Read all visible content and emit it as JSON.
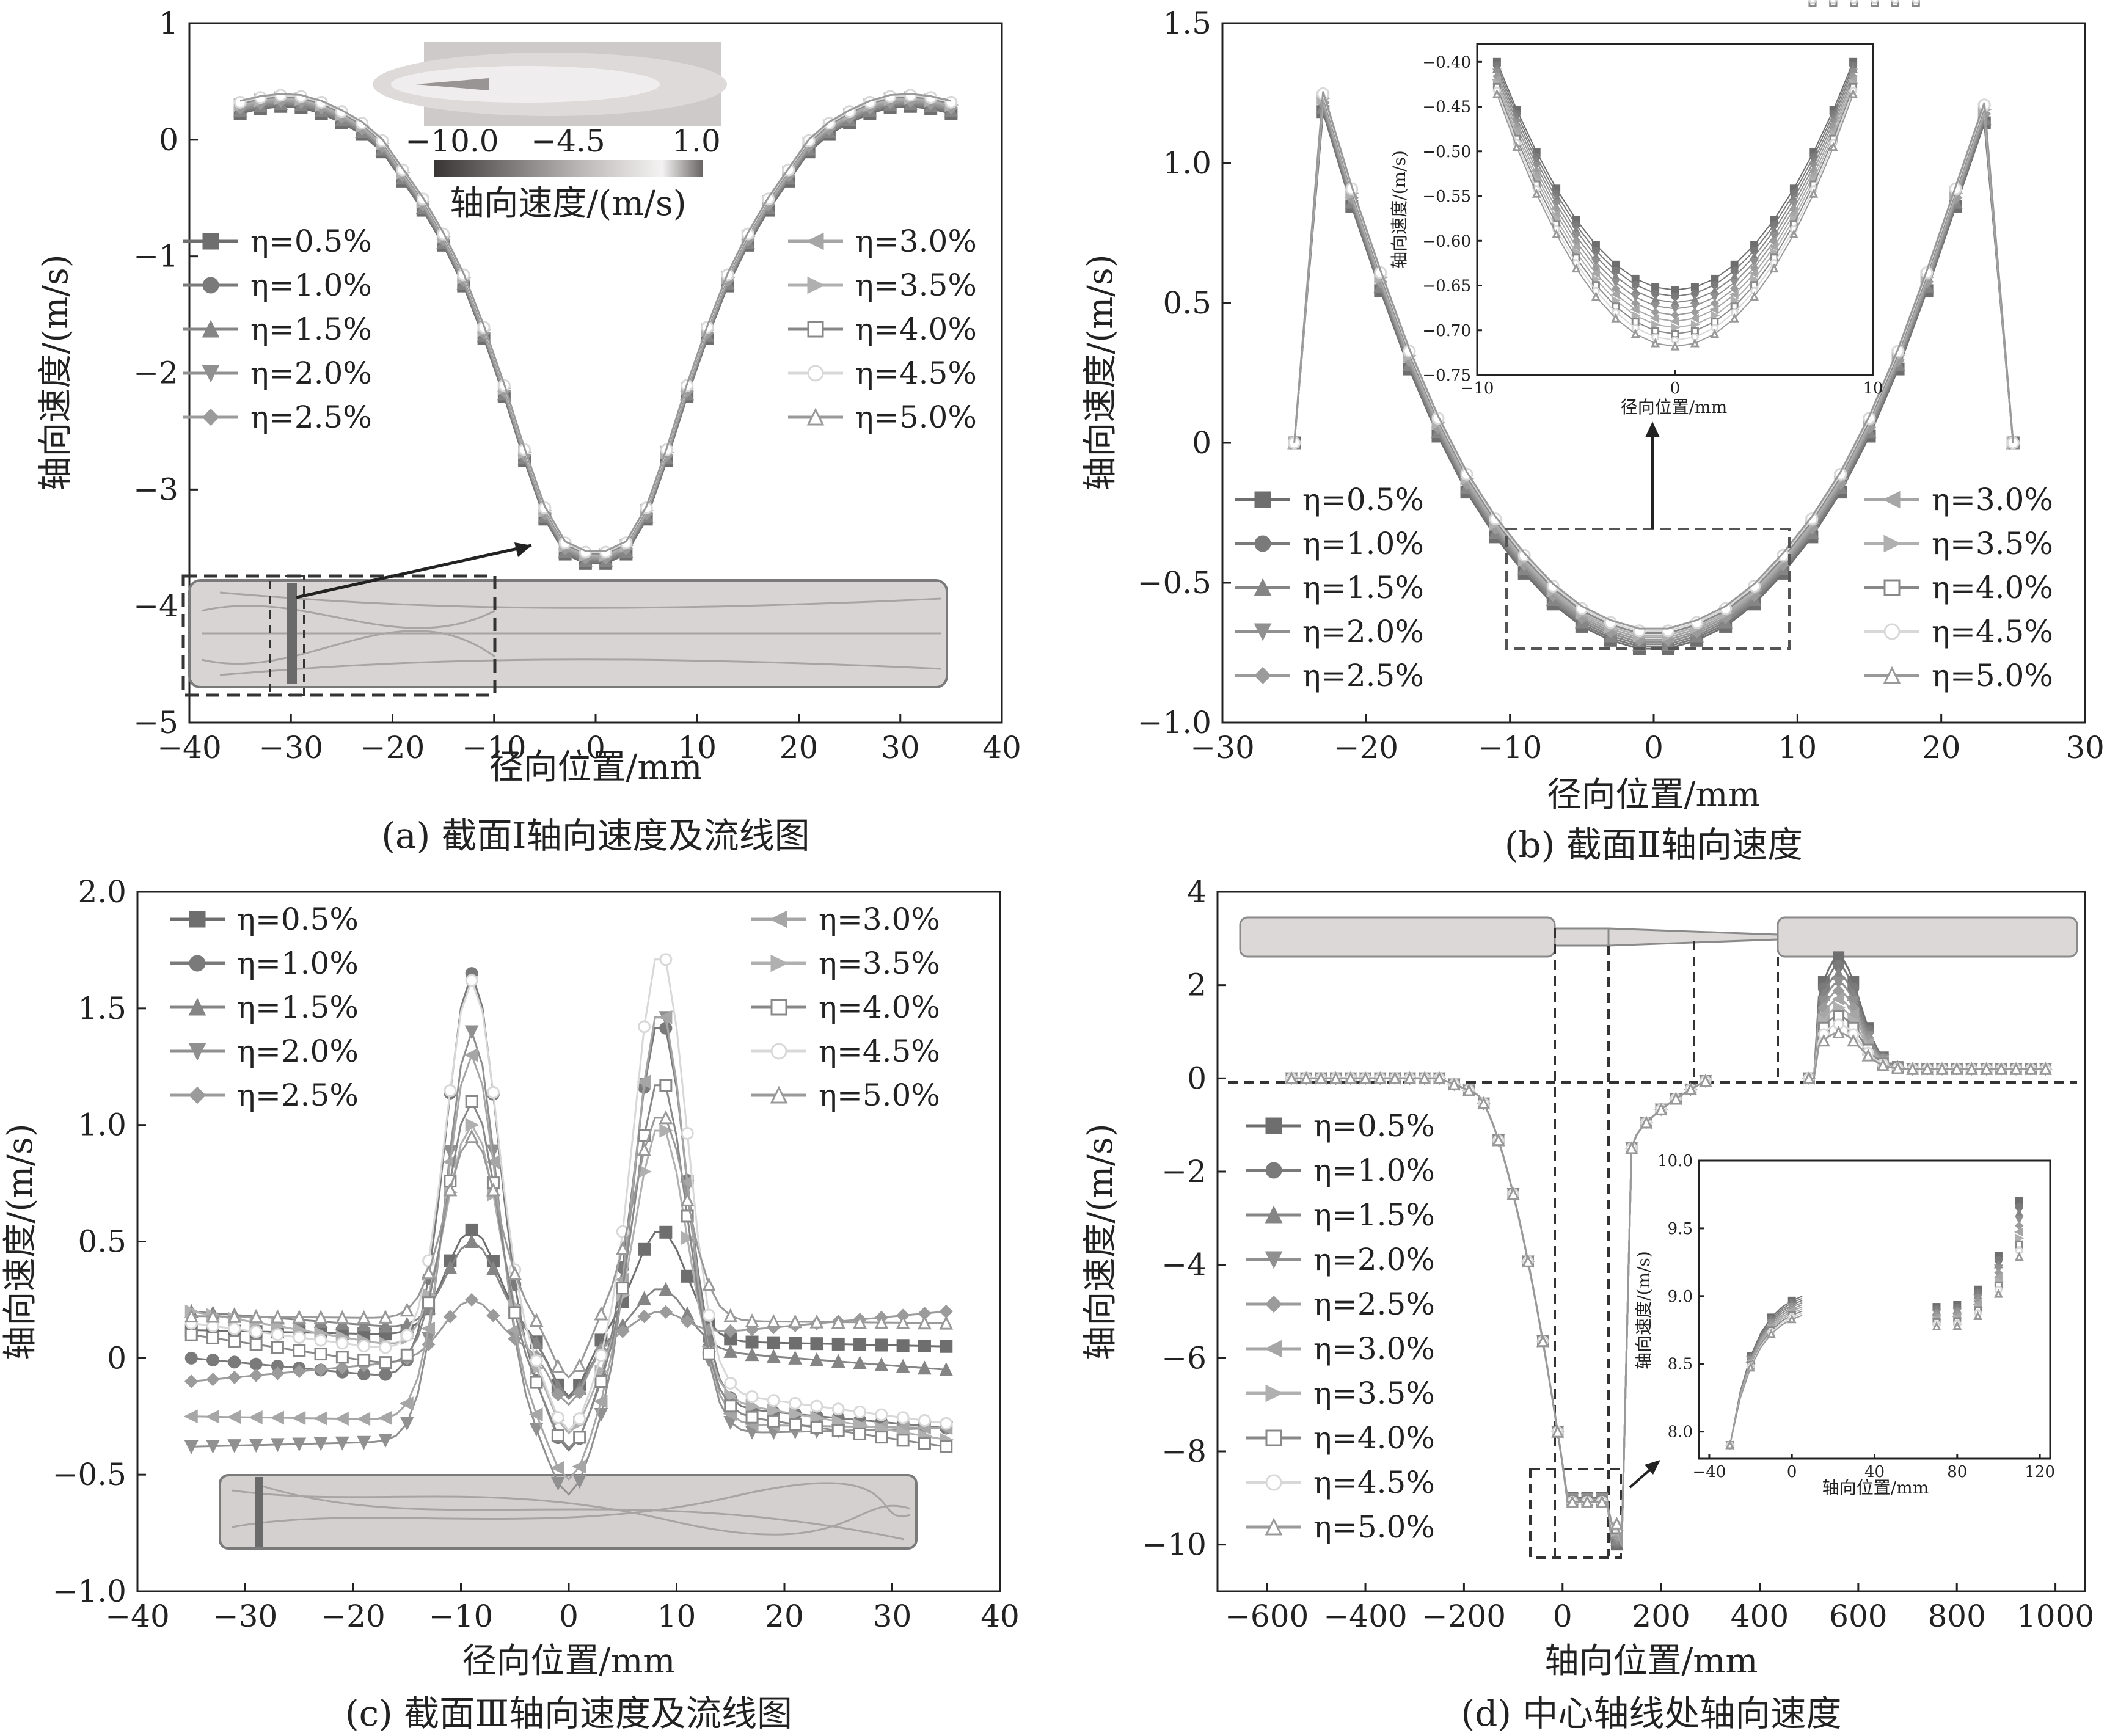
{
  "chart_data": [
    {
      "id": "a",
      "type": "line",
      "caption": "(a) 截面Ⅰ轴向速度及流线图",
      "xlabel": "径向位置/mm",
      "ylabel": "轴向速度/(m/s)",
      "xlim": [
        -40,
        40
      ],
      "ylim": [
        -5,
        1
      ],
      "xticks": [
        "−40",
        "−30",
        "−20",
        "−10",
        "0",
        "10",
        "20",
        "30",
        "40"
      ],
      "yticks": [
        "−5",
        "−4",
        "−3",
        "−2",
        "−1",
        "0",
        "1"
      ],
      "legend": [
        "η=0.5%",
        "η=1.0%",
        "η=1.5%",
        "η=2.0%",
        "η=2.5%",
        "η=3.0%",
        "η=3.5%",
        "η=4.0%",
        "η=4.5%",
        "η=5.0%"
      ],
      "colorbar_ticks": [
        "−10.0",
        "−4.5",
        "1.0"
      ],
      "colorbar_label": "轴向速度/(m/s)",
      "series_base": {
        "x": [
          -35,
          -33,
          -31,
          -29,
          -27,
          -25,
          -23,
          -21,
          -19,
          -17,
          -15,
          -13,
          -11,
          -9,
          -7,
          -5,
          -3,
          -1,
          1,
          3,
          5,
          7,
          9,
          11,
          13,
          15,
          17,
          19,
          21,
          23,
          25,
          27,
          29,
          31,
          33,
          35
        ],
        "y": [
          0.28,
          0.32,
          0.34,
          0.33,
          0.28,
          0.2,
          0.1,
          -0.05,
          -0.3,
          -0.55,
          -0.85,
          -1.2,
          -1.65,
          -2.15,
          -2.7,
          -3.2,
          -3.5,
          -3.58,
          -3.58,
          -3.5,
          -3.2,
          -2.7,
          -2.15,
          -1.65,
          -1.2,
          -0.85,
          -0.55,
          -0.3,
          -0.05,
          0.1,
          0.2,
          0.28,
          0.33,
          0.34,
          0.32,
          0.28
        ]
      }
    },
    {
      "id": "b",
      "type": "line",
      "caption": "(b) 截面Ⅱ轴向速度",
      "xlabel": "径向位置/mm",
      "ylabel": "轴向速度/(m/s)",
      "xlim": [
        -30,
        30
      ],
      "ylim": [
        -1.0,
        1.5
      ],
      "xticks": [
        "−30",
        "−20",
        "−10",
        "0",
        "10",
        "20",
        "30"
      ],
      "yticks": [
        "−1.0",
        "−0.5",
        "0",
        "0.5",
        "1.0",
        "1.5"
      ],
      "legend": [
        "η=0.5%",
        "η=1.0%",
        "η=1.5%",
        "η=2.0%",
        "η=2.5%",
        "η=3.0%",
        "η=3.5%",
        "η=4.0%",
        "η=4.5%",
        "η=5.0%"
      ],
      "series_base": {
        "x": [
          -25,
          -23,
          -21,
          -19,
          -17,
          -15,
          -13,
          -11,
          -9,
          -7,
          -5,
          -3,
          -1,
          1,
          3,
          5,
          7,
          9,
          11,
          13,
          15,
          17,
          19,
          21,
          23,
          25
        ],
        "y": [
          0,
          1.22,
          0.88,
          0.58,
          0.3,
          0.06,
          -0.14,
          -0.3,
          -0.43,
          -0.54,
          -0.62,
          -0.67,
          -0.7,
          -0.7,
          -0.67,
          -0.62,
          -0.54,
          -0.43,
          -0.3,
          -0.14,
          0.06,
          0.3,
          0.58,
          0.88,
          1.18,
          0
        ]
      },
      "inset": {
        "xlabel": "径向位置/mm",
        "ylabel": "轴向速度/(m/s)",
        "xlim": [
          -10,
          10
        ],
        "ylim": [
          -0.75,
          -0.38
        ],
        "xticks": [
          "−10",
          "0",
          "10"
        ],
        "yticks": [
          "−0.40",
          "−0.45",
          "−0.50",
          "−0.55",
          "−0.60",
          "−0.65",
          "−0.70",
          "−0.75"
        ]
      }
    },
    {
      "id": "c",
      "type": "line",
      "caption": "(c) 截面Ⅲ轴向速度及流线图",
      "xlabel": "径向位置/mm",
      "ylabel": "轴向速度/(m/s)",
      "xlim": [
        -40,
        40
      ],
      "ylim": [
        -1.0,
        2.0
      ],
      "xticks": [
        "−40",
        "−30",
        "−20",
        "−10",
        "0",
        "10",
        "20",
        "30",
        "40"
      ],
      "yticks": [
        "−1.0",
        "−0.5",
        "0",
        "0.5",
        "1.0",
        "1.5",
        "2.0"
      ],
      "legend": [
        "η=0.5%",
        "η=1.0%",
        "η=1.5%",
        "η=2.0%",
        "η=2.5%",
        "η=3.0%",
        "η=3.5%",
        "η=4.0%",
        "η=4.5%",
        "η=5.0%"
      ],
      "series": [
        {
          "name": "η=0.5%",
          "peaks": [
            0.55,
            0.55
          ],
          "base": [
            0.12,
            0.05
          ]
        },
        {
          "name": "η=1.0%",
          "peaks": [
            1.65,
            1.45
          ],
          "base": [
            0.0,
            -0.3
          ]
        },
        {
          "name": "η=1.5%",
          "peaks": [
            0.5,
            0.3
          ],
          "base": [
            0.2,
            -0.05
          ]
        },
        {
          "name": "η=2.0%",
          "peaks": [
            1.4,
            1.5
          ],
          "base": [
            -0.38,
            -0.3
          ]
        },
        {
          "name": "η=2.5%",
          "peaks": [
            0.25,
            0.2
          ],
          "base": [
            -0.1,
            0.2
          ]
        },
        {
          "name": "η=3.0%",
          "peaks": [
            1.3,
            1.5
          ],
          "base": [
            -0.25,
            -0.3
          ]
        },
        {
          "name": "η=3.5%",
          "peaks": [
            1.0,
            1.0
          ],
          "base": [
            0.2,
            -0.35
          ]
        },
        {
          "name": "η=4.0%",
          "peaks": [
            1.1,
            1.2
          ],
          "base": [
            0.1,
            -0.38
          ]
        },
        {
          "name": "η=4.5%",
          "peaks": [
            1.62,
            1.75
          ],
          "base": [
            0.15,
            -0.28
          ]
        },
        {
          "name": "η=5.0%",
          "peaks": [
            0.95,
            1.05
          ],
          "base": [
            0.18,
            0.15
          ]
        }
      ]
    },
    {
      "id": "d",
      "type": "line",
      "caption": "(d) 中心轴线处轴向速度",
      "xlabel": "轴向位置/mm",
      "ylabel": "轴向速度/(m/s)",
      "xlim": [
        -700,
        1060
      ],
      "ylim": [
        -11,
        4
      ],
      "xticks": [
        "−600",
        "−400",
        "−200",
        "0",
        "200",
        "400",
        "600",
        "800",
        "1000"
      ],
      "yticks": [
        "−10",
        "−8",
        "−6",
        "−4",
        "−2",
        "0",
        "2",
        "4"
      ],
      "legend": [
        "η=0.5%",
        "η=1.0%",
        "η=1.5%",
        "η=2.0%",
        "η=2.5%",
        "η=3.0%",
        "η=3.5%",
        "η=4.0%",
        "η=4.5%",
        "η=5.0%"
      ],
      "inset": {
        "xlabel": "轴向位置/mm",
        "ylabel": "轴向速度/(m/s)",
        "xlim": [
          -45,
          125
        ],
        "ylim": [
          7.8,
          10.0
        ],
        "xticks": [
          "−40",
          "0",
          "40",
          "80",
          "120"
        ],
        "yticks": [
          "8.0",
          "8.5",
          "9.0",
          "9.5",
          "10.0"
        ]
      }
    }
  ],
  "colors": {
    "axis": "#222222",
    "series": [
      "#6e6e6e",
      "#7a7a7a",
      "#858585",
      "#909090",
      "#9b9b9b",
      "#a6a6a6",
      "#b0b0b0",
      "#888888",
      "#d8d8d8",
      "#999999"
    ]
  }
}
